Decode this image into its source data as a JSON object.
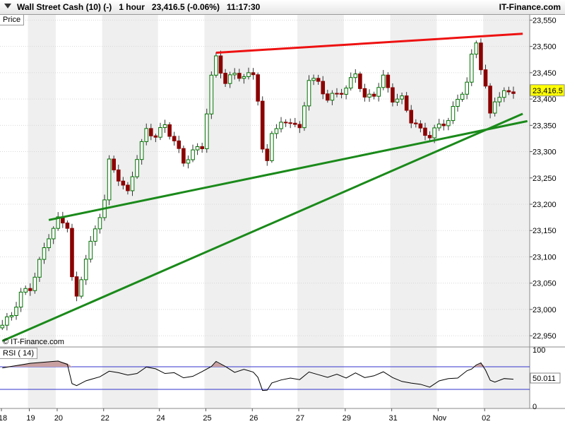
{
  "header": {
    "title": "Wall Street Cash (10) (-)   1 hour   23,416.5 (-0.06%)   11:17:30",
    "brand": "IT-Finance.com"
  },
  "price_tab": "Price",
  "watermark": "© IT-Finance.com",
  "rsi_tab": "RSI ( 14)",
  "current_price_label": "23,416.5",
  "rsi_value_label": "50.011",
  "colors": {
    "candle": "#007000",
    "down_candle": "#8b0000",
    "resistance": "#ee1111",
    "support": "#1a8a1a",
    "rsi_line": "#000000",
    "rsi_fill": "#c9a0a0",
    "rsi_band": "#3333cc",
    "shade": "#efefef"
  },
  "chart_data": [
    {
      "type": "candlestick",
      "ylim": [
        22930,
        23560
      ],
      "y_ticks": [
        "23,550",
        "23,500",
        "23,450",
        "23,400",
        "23,350",
        "23,300",
        "23,250",
        "23,200",
        "23,150",
        "23,100",
        "23,050",
        "23,000",
        "22,950"
      ],
      "y_tick_values": [
        23550,
        23500,
        23450,
        23400,
        23350,
        23300,
        23250,
        23200,
        23150,
        23100,
        23050,
        23000,
        22950
      ],
      "x_labels": [
        "18",
        "19",
        "20",
        "22",
        "24",
        "25",
        "26",
        "27",
        "29",
        "31",
        "Nov",
        "02"
      ],
      "close_path": [
        [
          0,
          22970
        ],
        [
          2,
          22990
        ],
        [
          4,
          23030
        ],
        [
          6,
          23040
        ],
        [
          8,
          23090
        ],
        [
          10,
          23140
        ],
        [
          12,
          23170
        ],
        [
          14,
          23160
        ],
        [
          15,
          23060
        ],
        [
          16,
          23020
        ],
        [
          18,
          23100
        ],
        [
          20,
          23150
        ],
        [
          22,
          23210
        ],
        [
          23,
          23280
        ],
        [
          25,
          23250
        ],
        [
          27,
          23220
        ],
        [
          29,
          23290
        ],
        [
          31,
          23340
        ],
        [
          33,
          23330
        ],
        [
          35,
          23350
        ],
        [
          37,
          23320
        ],
        [
          39,
          23280
        ],
        [
          41,
          23300
        ],
        [
          43,
          23310
        ],
        [
          45,
          23440
        ],
        [
          46,
          23480
        ],
        [
          48,
          23430
        ],
        [
          50,
          23450
        ],
        [
          52,
          23440
        ],
        [
          54,
          23450
        ],
        [
          55,
          23400
        ],
        [
          56,
          23300
        ],
        [
          57,
          23280
        ],
        [
          58,
          23340
        ],
        [
          60,
          23350
        ],
        [
          62,
          23360
        ],
        [
          64,
          23340
        ],
        [
          66,
          23440
        ],
        [
          68,
          23430
        ],
        [
          70,
          23400
        ],
        [
          72,
          23410
        ],
        [
          74,
          23420
        ],
        [
          76,
          23450
        ],
        [
          78,
          23400
        ],
        [
          80,
          23410
        ],
        [
          82,
          23440
        ],
        [
          84,
          23400
        ],
        [
          86,
          23400
        ],
        [
          88,
          23360
        ],
        [
          90,
          23340
        ],
        [
          92,
          23330
        ],
        [
          94,
          23350
        ],
        [
          96,
          23360
        ],
        [
          98,
          23400
        ],
        [
          100,
          23430
        ],
        [
          101,
          23480
        ],
        [
          102,
          23510
        ],
        [
          103,
          23460
        ],
        [
          104,
          23420
        ],
        [
          105,
          23370
        ],
        [
          106,
          23400
        ],
        [
          108,
          23410
        ],
        [
          110,
          23416.5
        ]
      ],
      "resistance_line": [
        [
          46,
          23488
        ],
        [
          112,
          23524
        ]
      ],
      "support_lines": [
        [
          [
            10,
            23170
          ],
          [
            113,
            23358
          ]
        ],
        [
          [
            0,
            22940
          ],
          [
            112,
            23372
          ]
        ]
      ]
    },
    {
      "type": "line",
      "name": "RSI ( 14)",
      "ylim": [
        0,
        100
      ],
      "y_ticks": [
        "100",
        "50",
        "0"
      ],
      "y_tick_values": [
        100,
        50,
        0
      ],
      "upper_band": 70,
      "lower_band": 30,
      "values": [
        [
          0,
          68
        ],
        [
          3,
          72
        ],
        [
          6,
          76
        ],
        [
          9,
          78
        ],
        [
          12,
          80
        ],
        [
          14,
          76
        ],
        [
          15,
          40
        ],
        [
          16,
          35
        ],
        [
          18,
          45
        ],
        [
          21,
          52
        ],
        [
          23,
          64
        ],
        [
          25,
          58
        ],
        [
          27,
          55
        ],
        [
          29,
          60
        ],
        [
          31,
          68
        ],
        [
          33,
          66
        ],
        [
          35,
          60
        ],
        [
          37,
          58
        ],
        [
          39,
          50
        ],
        [
          41,
          55
        ],
        [
          43,
          60
        ],
        [
          45,
          70
        ],
        [
          46,
          78
        ],
        [
          48,
          70
        ],
        [
          50,
          62
        ],
        [
          52,
          64
        ],
        [
          54,
          60
        ],
        [
          55,
          50
        ],
        [
          56,
          30
        ],
        [
          57,
          28
        ],
        [
          58,
          40
        ],
        [
          60,
          46
        ],
        [
          62,
          52
        ],
        [
          64,
          46
        ],
        [
          66,
          60
        ],
        [
          68,
          58
        ],
        [
          70,
          50
        ],
        [
          72,
          56
        ],
        [
          74,
          52
        ],
        [
          76,
          58
        ],
        [
          78,
          50
        ],
        [
          80,
          56
        ],
        [
          82,
          60
        ],
        [
          84,
          50
        ],
        [
          86,
          46
        ],
        [
          88,
          40
        ],
        [
          90,
          38
        ],
        [
          92,
          36
        ],
        [
          94,
          44
        ],
        [
          96,
          48
        ],
        [
          98,
          52
        ],
        [
          100,
          62
        ],
        [
          101,
          68
        ],
        [
          102,
          72
        ],
        [
          103,
          76
        ],
        [
          104,
          66
        ],
        [
          105,
          45
        ],
        [
          106,
          42
        ],
        [
          108,
          48
        ],
        [
          110,
          50
        ]
      ]
    }
  ]
}
